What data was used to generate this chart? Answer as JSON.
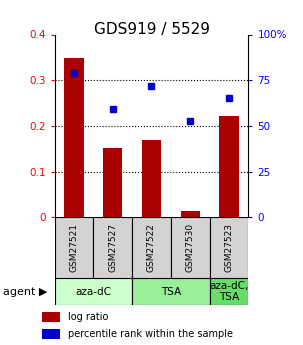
{
  "title": "GDS919 / 5529",
  "samples": [
    "GSM27521",
    "GSM27527",
    "GSM27522",
    "GSM27530",
    "GSM27523"
  ],
  "log_ratio": [
    0.348,
    0.152,
    0.17,
    0.013,
    0.222
  ],
  "percentile_rank": [
    0.315,
    0.237,
    0.288,
    0.21,
    0.26
  ],
  "agent_groups": [
    {
      "label": "aza-dC",
      "span": [
        0,
        2
      ],
      "color": "#ccffcc"
    },
    {
      "label": "TSA",
      "span": [
        2,
        4
      ],
      "color": "#99ee99"
    },
    {
      "label": "aza-dC,\nTSA",
      "span": [
        4,
        5
      ],
      "color": "#66dd66"
    }
  ],
  "bar_color": "#aa0000",
  "dot_color": "#0000cc",
  "ylim_left": [
    0,
    0.4
  ],
  "ylim_right": [
    0,
    100
  ],
  "yticks_left": [
    0,
    0.1,
    0.2,
    0.3,
    0.4
  ],
  "ytick_labels_left": [
    "0",
    "0.1",
    "0.2",
    "0.3",
    "0.4"
  ],
  "yticks_right": [
    0,
    25,
    50,
    75,
    100
  ],
  "ytick_labels_right": [
    "0",
    "25",
    "50",
    "75",
    "100%"
  ],
  "legend_items": [
    {
      "label": "log ratio",
      "color": "#aa0000"
    },
    {
      "label": "percentile rank within the sample",
      "color": "#0000cc"
    }
  ],
  "bar_width": 0.5,
  "title_fontsize": 11,
  "tick_fontsize": 7.5,
  "sample_fontsize": 6.5,
  "agent_fontsize": 7.5,
  "legend_fontsize": 7
}
